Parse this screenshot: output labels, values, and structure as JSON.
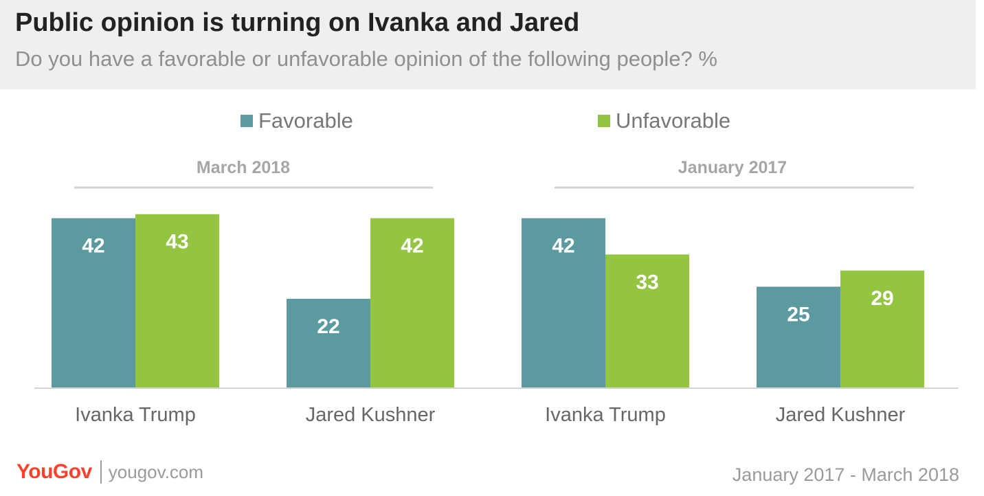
{
  "header": {
    "title": "Public opinion is turning on Ivanka and Jared",
    "subtitle": "Do you have a favorable or unfavorable opinion of the following people? %"
  },
  "legend": [
    {
      "label": "Favorable",
      "color": "#5b9a9e"
    },
    {
      "label": "Unfavorable",
      "color": "#93c540"
    }
  ],
  "footer": {
    "brand": "YouGov",
    "url": "yougov.com",
    "date_range": "January 2017 -  March 2018"
  },
  "chart_data": {
    "type": "bar",
    "grid": false,
    "ylim": [
      0,
      45
    ],
    "groups": [
      {
        "label": "March 2018",
        "categories": [
          "Ivanka Trump",
          "Jared Kushner"
        ],
        "series": [
          {
            "name": "Favorable",
            "values": [
              42,
              22
            ],
            "color": "#5b9a9e"
          },
          {
            "name": "Unfavorable",
            "values": [
              43,
              42
            ],
            "color": "#93c540"
          }
        ]
      },
      {
        "label": "January 2017",
        "categories": [
          "Ivanka Trump",
          "Jared Kushner"
        ],
        "series": [
          {
            "name": "Favorable",
            "values": [
              42,
              25
            ],
            "color": "#5b9a9e"
          },
          {
            "name": "Unfavorable",
            "values": [
              33,
              29
            ],
            "color": "#93c540"
          }
        ]
      }
    ]
  }
}
